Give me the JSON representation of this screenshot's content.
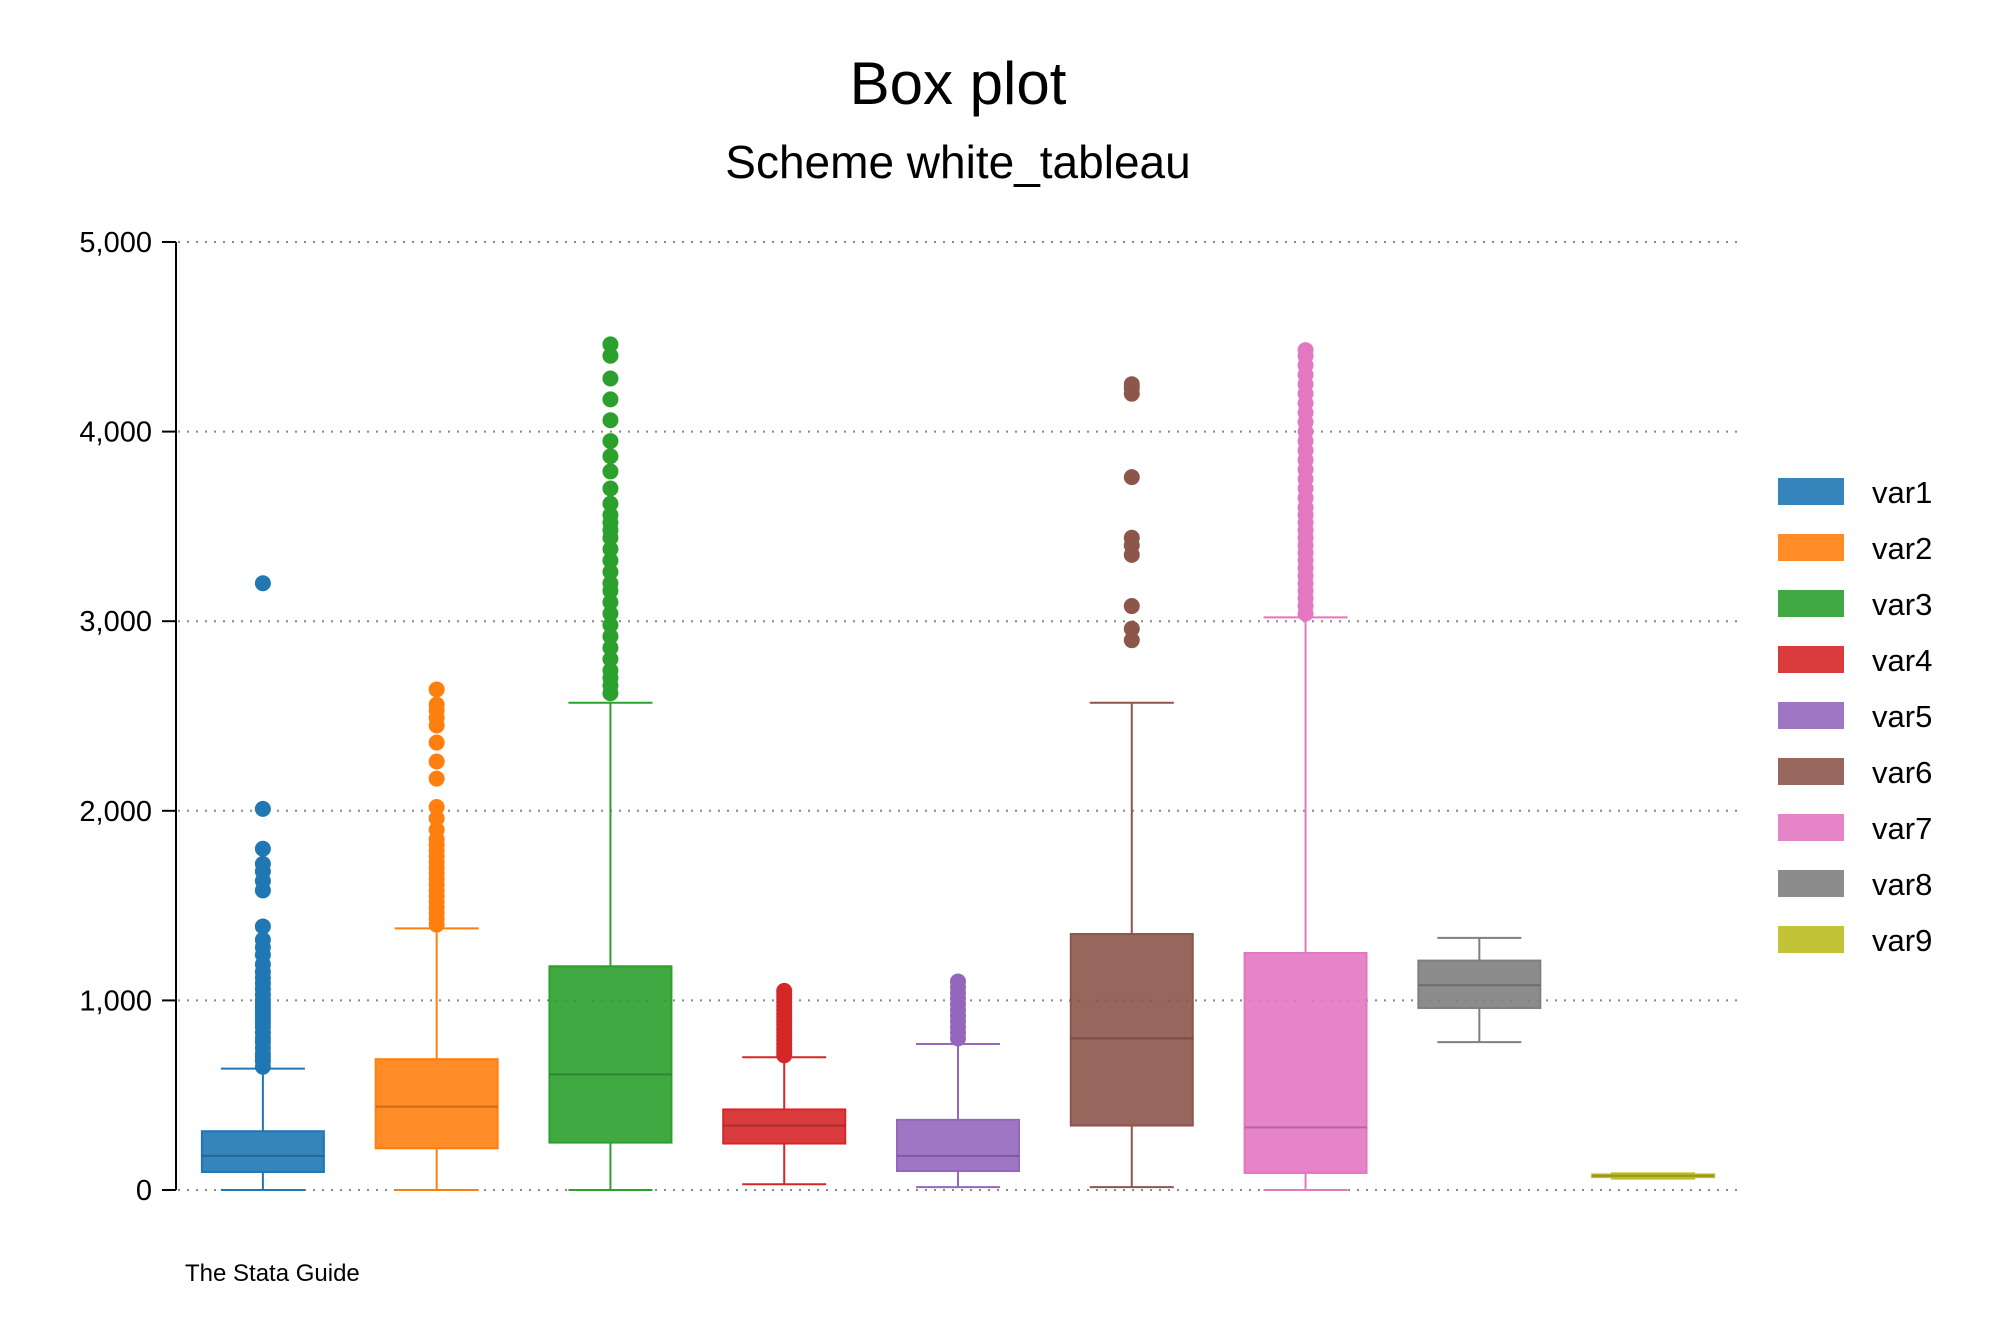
{
  "chart_data": {
    "type": "box",
    "title": "Box plot",
    "subtitle": "Scheme white_tableau",
    "note": "The Stata Guide",
    "xlabel": "",
    "ylabel": "",
    "ylim": [
      0,
      5000
    ],
    "yticks": [
      0,
      1000,
      2000,
      3000,
      4000,
      5000
    ],
    "ytick_labels": [
      "0",
      "1,000",
      "2,000",
      "3,000",
      "4,000",
      "5,000"
    ],
    "grid": true,
    "legend_position": "right",
    "series": [
      {
        "name": "var1",
        "color": "#1f77b4",
        "q1": 95,
        "median": 180,
        "q3": 310,
        "whisker_low": 0,
        "whisker_high": 640,
        "outliers": [
          650,
          680,
          700,
          720,
          750,
          780,
          800,
          830,
          860,
          880,
          900,
          920,
          940,
          960,
          980,
          1000,
          1030,
          1060,
          1090,
          1120,
          1150,
          1190,
          1240,
          1280,
          1320,
          1390,
          1580,
          1630,
          1680,
          1720,
          1800,
          2010,
          3200
        ]
      },
      {
        "name": "var2",
        "color": "#ff7f0e",
        "q1": 220,
        "median": 440,
        "q3": 690,
        "whisker_low": 0,
        "whisker_high": 1380,
        "outliers": [
          1400,
          1430,
          1460,
          1490,
          1520,
          1550,
          1580,
          1610,
          1640,
          1670,
          1700,
          1730,
          1760,
          1790,
          1820,
          1850,
          1900,
          1960,
          2020,
          2170,
          2260,
          2360,
          2450,
          2490,
          2530,
          2560,
          2640
        ]
      },
      {
        "name": "var3",
        "color": "#2ca02c",
        "q1": 250,
        "median": 610,
        "q3": 1180,
        "whisker_low": 0,
        "whisker_high": 2570,
        "outliers": [
          2620,
          2660,
          2700,
          2740,
          2800,
          2860,
          2920,
          2980,
          3040,
          3100,
          3160,
          3200,
          3260,
          3320,
          3380,
          3440,
          3480,
          3520,
          3560,
          3620,
          3700,
          3790,
          3870,
          3950,
          4060,
          4170,
          4280,
          4400,
          4460
        ]
      },
      {
        "name": "var4",
        "color": "#d62728",
        "q1": 245,
        "median": 340,
        "q3": 425,
        "whisker_low": 30,
        "whisker_high": 700,
        "outliers": [
          710,
          730,
          750,
          770,
          790,
          810,
          830,
          850,
          870,
          890,
          910,
          930,
          950,
          970,
          990,
          1010,
          1030,
          1050
        ]
      },
      {
        "name": "var5",
        "color": "#9467bd",
        "q1": 100,
        "median": 180,
        "q3": 370,
        "whisker_low": 15,
        "whisker_high": 770,
        "outliers": [
          800,
          830,
          860,
          890,
          920,
          950,
          980,
          1010,
          1040,
          1070,
          1100
        ]
      },
      {
        "name": "var6",
        "color": "#8c564b",
        "q1": 340,
        "median": 800,
        "q3": 1350,
        "whisker_low": 15,
        "whisker_high": 2570,
        "outliers": [
          2900,
          2960,
          3080,
          3350,
          3400,
          3440,
          3760,
          4200,
          4230,
          4250
        ]
      },
      {
        "name": "var7",
        "color": "#e377c2",
        "q1": 90,
        "median": 330,
        "q3": 1250,
        "whisker_low": 0,
        "whisker_high": 3020,
        "outliers": [
          3040,
          3080,
          3120,
          3160,
          3200,
          3240,
          3280,
          3320,
          3360,
          3400,
          3440,
          3480,
          3520,
          3560,
          3600,
          3650,
          3700,
          3750,
          3800,
          3850,
          3900,
          3950,
          4000,
          4050,
          4100,
          4150,
          4200,
          4250,
          4300,
          4350,
          4400,
          4430
        ]
      },
      {
        "name": "var8",
        "color": "#7f7f7f",
        "q1": 960,
        "median": 1080,
        "q3": 1210,
        "whisker_low": 780,
        "whisker_high": 1330,
        "outliers": []
      },
      {
        "name": "var9",
        "color": "#bcbd22",
        "q1": 68,
        "median": 75,
        "q3": 82,
        "whisker_low": 60,
        "whisker_high": 88,
        "outliers": []
      }
    ]
  }
}
